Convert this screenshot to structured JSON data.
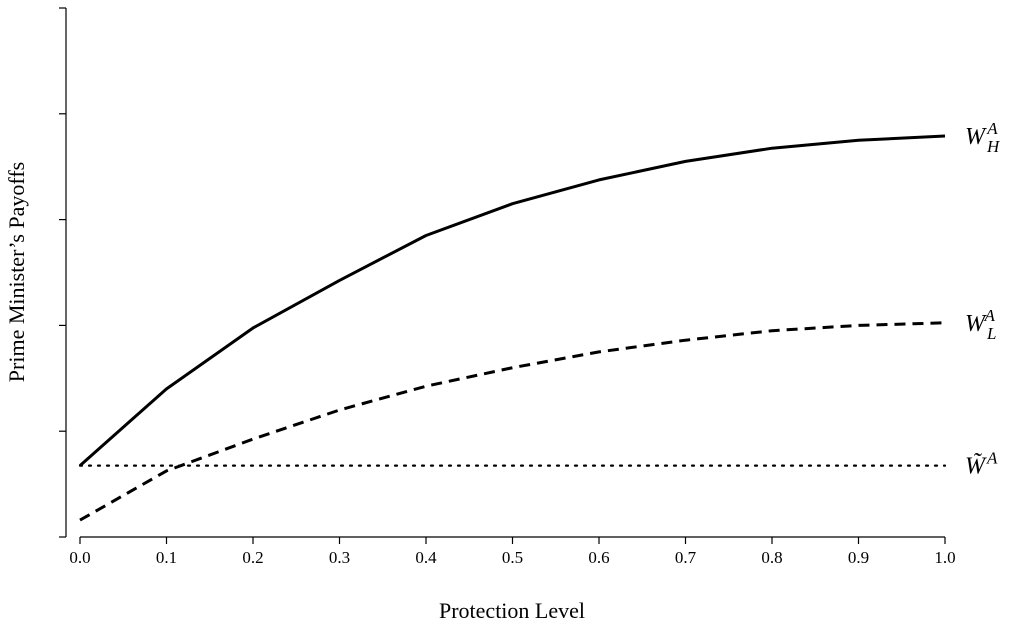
{
  "chart_data": {
    "type": "line",
    "xlabel": "Protection Level",
    "ylabel": "Prime Minister’s Payoffs",
    "xlim": [
      0,
      1
    ],
    "ylim": [
      0,
      1
    ],
    "x_ticks": [
      "0.0",
      "0.1",
      "0.2",
      "0.3",
      "0.4",
      "0.5",
      "0.6",
      "0.7",
      "0.8",
      "0.9",
      "1.0"
    ],
    "y_tick_values": [
      0.2,
      0.4,
      0.6,
      0.8,
      1.0
    ],
    "y_tick_labels_shown": false,
    "grid": false,
    "legend": "none (series labelled at right end of lines)",
    "x": [
      0.0,
      0.1,
      0.2,
      0.3,
      0.4,
      0.5,
      0.6,
      0.7,
      0.8,
      0.9,
      1.0
    ],
    "series": [
      {
        "name": "W_H^A",
        "label_main": "W",
        "label_sub": "H",
        "label_sup": "A",
        "style": "solid",
        "values": [
          0.135,
          0.28,
          0.395,
          0.485,
          0.57,
          0.63,
          0.675,
          0.71,
          0.735,
          0.75,
          0.758
        ]
      },
      {
        "name": "W_L^A",
        "label_main": "W",
        "label_sub": "L",
        "label_sup": "A",
        "style": "dashed",
        "values": [
          0.032,
          0.125,
          0.185,
          0.24,
          0.285,
          0.32,
          0.35,
          0.372,
          0.39,
          0.4,
          0.405
        ]
      },
      {
        "name": "W̃^A",
        "label_main": "W̃",
        "label_sub": "",
        "label_sup": "A",
        "style": "dotted",
        "values": [
          0.135,
          0.135,
          0.135,
          0.135,
          0.135,
          0.135,
          0.135,
          0.135,
          0.135,
          0.135,
          0.135
        ]
      }
    ],
    "colors": {
      "line": "#000000",
      "background": "#ffffff"
    }
  }
}
